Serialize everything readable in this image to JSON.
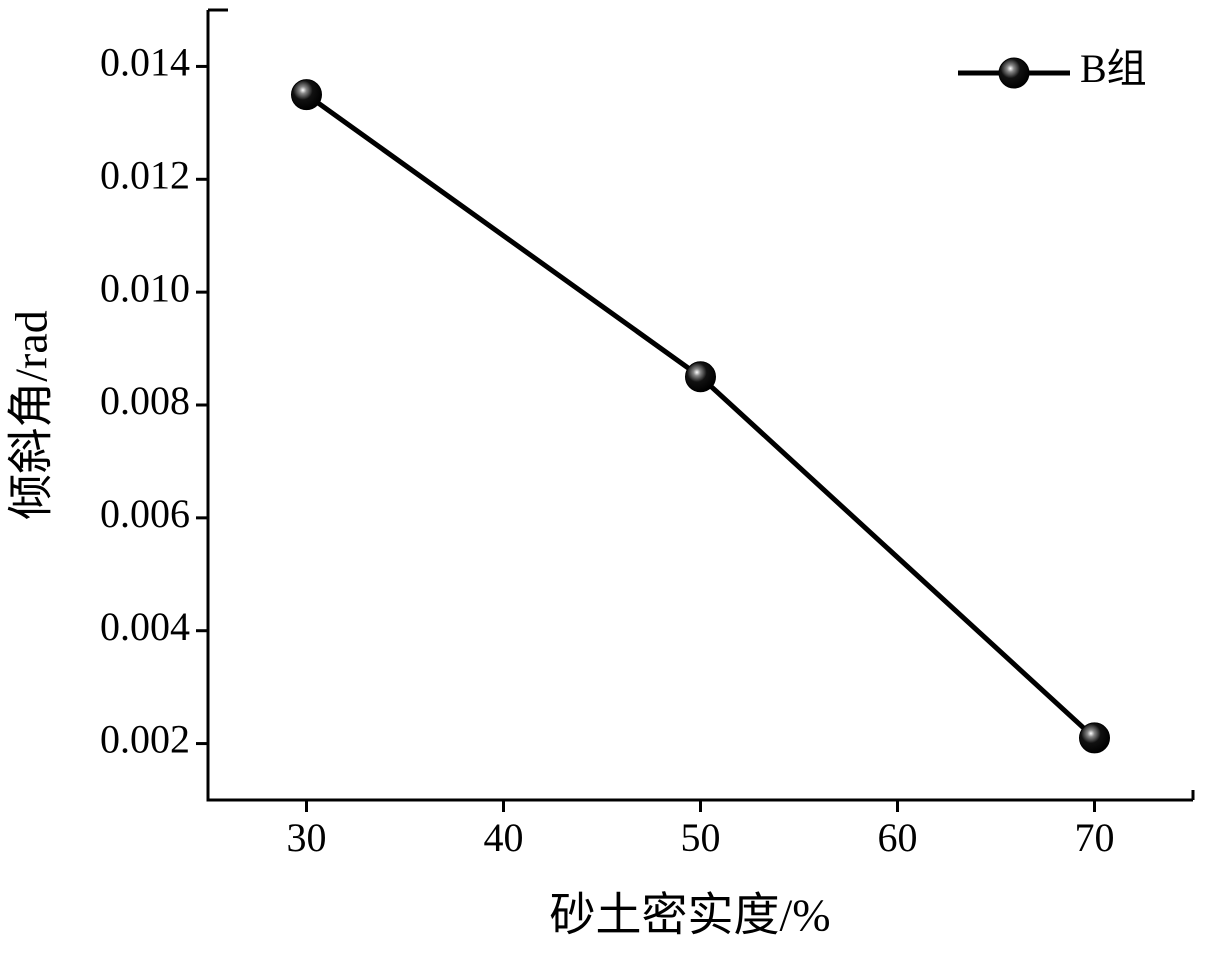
{
  "chart_data": {
    "type": "line",
    "x_label": "砂土密实度/%",
    "y_label": "倾斜角/rad",
    "x": [
      30,
      50,
      70
    ],
    "series": [
      {
        "name": "B组",
        "color": "#000000",
        "values": [
          0.0135,
          0.0085,
          0.0021
        ]
      }
    ],
    "xlim": [
      25,
      75
    ],
    "xticks": [
      30,
      40,
      50,
      60,
      70
    ],
    "ylim": [
      0.001,
      0.015
    ],
    "yticks": [
      0.002,
      0.004,
      0.006,
      0.008,
      {
        "value": 0.01,
        "label": "0.010"
      },
      0.012,
      0.014
    ],
    "legend": "top-right",
    "grid": false
  }
}
